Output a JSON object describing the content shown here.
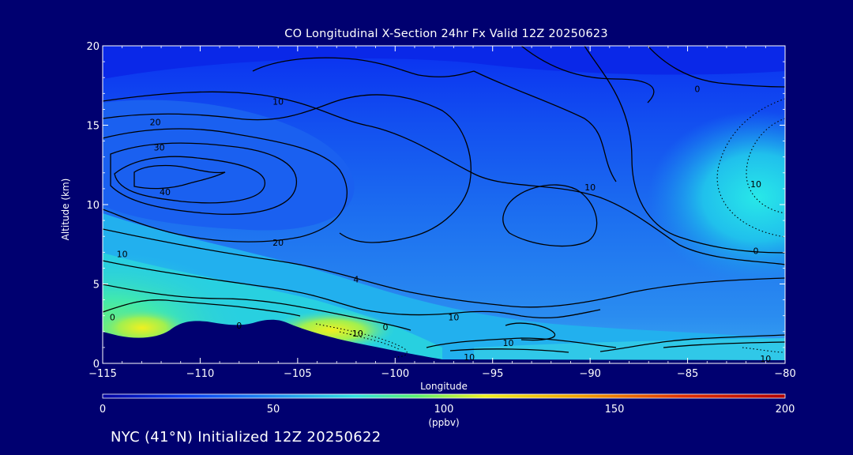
{
  "chart_data": {
    "type": "heatmap",
    "title": "CO Longitudinal X-Section 24hr  Fx Valid 12Z 20250623",
    "xlabel": "Longitude",
    "ylabel": "Altitude (km)",
    "xlim": [
      -115,
      -80
    ],
    "ylim": [
      0,
      20
    ],
    "x_ticks": [
      -115,
      -110,
      -105,
      -100,
      -95,
      -90,
      -85,
      -80
    ],
    "y_ticks": [
      0,
      5,
      10,
      15,
      20
    ],
    "colorbar": {
      "range": [
        0,
        200
      ],
      "ticks": [
        0,
        50,
        100,
        150,
        200
      ],
      "unit": "(ppbv)",
      "colors": [
        "#0000a0",
        "#0a3cf0",
        "#1f8cf0",
        "#30e0e0",
        "#58f070",
        "#f0f020",
        "#f0a000",
        "#e03000",
        "#b00000"
      ]
    },
    "contour_labels": [
      {
        "lon": -106,
        "alt": 16.5,
        "text": "10"
      },
      {
        "lon": -112.3,
        "alt": 15.2,
        "text": "20"
      },
      {
        "lon": -112.1,
        "alt": 13.6,
        "text": "30"
      },
      {
        "lon": -111.8,
        "alt": 10.8,
        "text": "40"
      },
      {
        "lon": -106,
        "alt": 7.6,
        "text": "20"
      },
      {
        "lon": -114,
        "alt": 6.9,
        "text": "10"
      },
      {
        "lon": -102,
        "alt": 5.3,
        "text": "4"
      },
      {
        "lon": -114.5,
        "alt": 2.9,
        "text": "0"
      },
      {
        "lon": -108,
        "alt": 2.4,
        "text": "0"
      },
      {
        "lon": -102,
        "alt": 1.9,
        "text": "-10"
      },
      {
        "lon": -100.5,
        "alt": 2.3,
        "text": "0"
      },
      {
        "lon": -97,
        "alt": 2.9,
        "text": "10"
      },
      {
        "lon": -94.2,
        "alt": 1.3,
        "text": "10"
      },
      {
        "lon": -96.2,
        "alt": 0.4,
        "text": "10"
      },
      {
        "lon": -90,
        "alt": 11.1,
        "text": "10"
      },
      {
        "lon": -84.5,
        "alt": 17.3,
        "text": "0"
      },
      {
        "lon": -81.5,
        "alt": 11.3,
        "text": "10"
      },
      {
        "lon": -81.5,
        "alt": 7.1,
        "text": "0"
      },
      {
        "lon": -81,
        "alt": 0.3,
        "text": "10"
      }
    ]
  },
  "footer": "NYC (41°N) Initialized 12Z 20250622"
}
